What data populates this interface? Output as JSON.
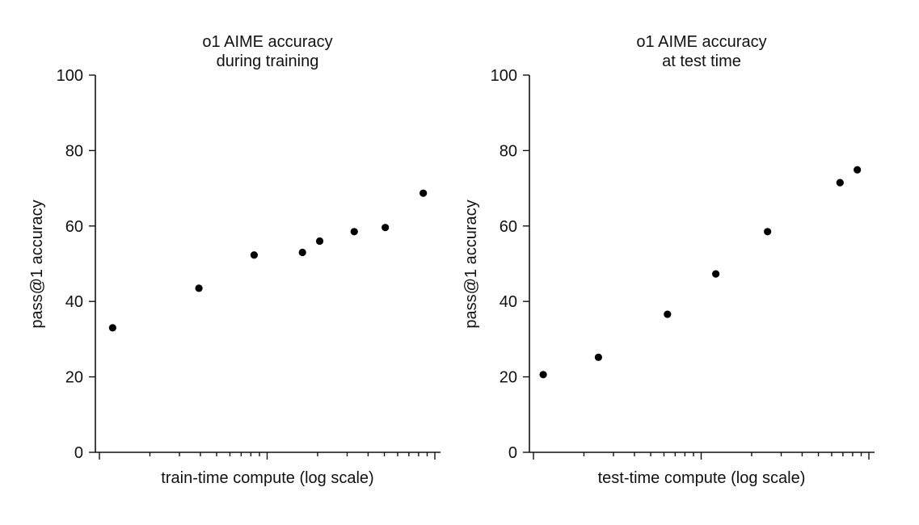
{
  "chart_data": [
    {
      "type": "scatter",
      "title_lines": [
        "o1 AIME accuracy",
        "during training"
      ],
      "xlabel": "train-time compute (log scale)",
      "ylabel": "pass@1 accuracy",
      "ylim": [
        0,
        100
      ],
      "yticks": [
        "0",
        "20",
        "40",
        "60",
        "80",
        "100"
      ],
      "x_scale": "log",
      "x_tick_labels": false,
      "grid": false,
      "legend": "none",
      "point_color": "#000000",
      "x_relative": [
        0.05,
        0.3,
        0.46,
        0.6,
        0.65,
        0.75,
        0.84,
        0.95
      ],
      "values": [
        33,
        43.5,
        52.3,
        53,
        56,
        58.5,
        59.6,
        68.7
      ]
    },
    {
      "type": "scatter",
      "title_lines": [
        "o1 AIME accuracy",
        "at test time"
      ],
      "xlabel": "test-time compute (log scale)",
      "ylabel": "pass@1 accuracy",
      "ylim": [
        0,
        100
      ],
      "yticks": [
        "0",
        "20",
        "40",
        "60",
        "80",
        "100"
      ],
      "x_scale": "log",
      "x_tick_labels": false,
      "grid": false,
      "legend": "none",
      "point_color": "#000000",
      "x_relative": [
        0.04,
        0.2,
        0.4,
        0.54,
        0.69,
        0.9,
        0.95
      ],
      "values": [
        20.6,
        25.2,
        36.6,
        47.3,
        58.5,
        71.5,
        74.9
      ]
    }
  ]
}
